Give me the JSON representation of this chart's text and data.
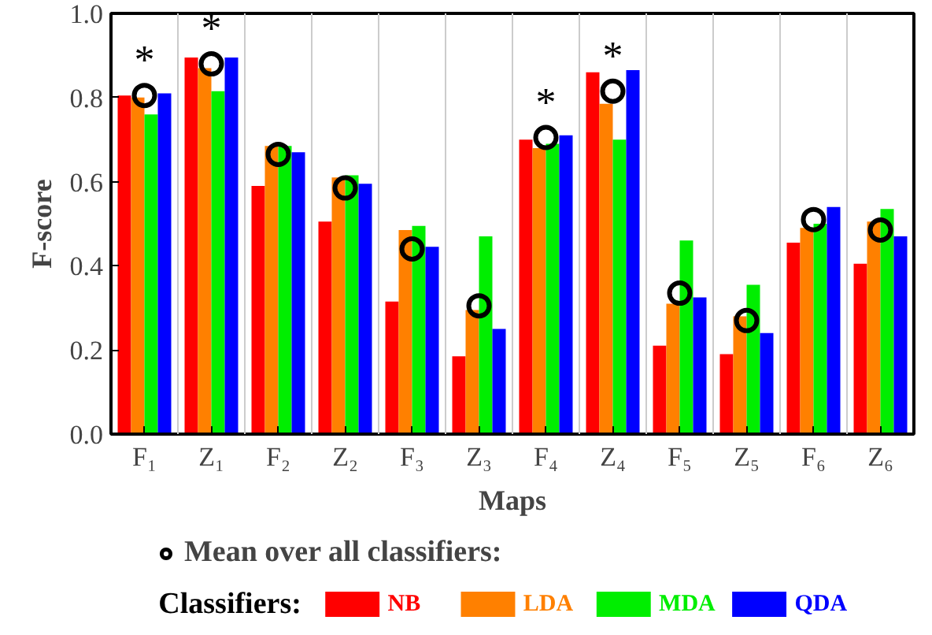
{
  "chart_data": {
    "type": "bar",
    "xlabel": "Maps",
    "ylabel": "F-score",
    "legend_title": "Classifiers:",
    "categories": [
      "F₁",
      "Z₁",
      "F₂",
      "Z₂",
      "F₃",
      "Z₃",
      "F₄",
      "Z₄",
      "F₅",
      "Z₅",
      "F₆",
      "Z₆"
    ],
    "series": [
      {
        "name": "NB",
        "color": "#ff0000",
        "values": [
          0.805,
          0.895,
          0.59,
          0.505,
          0.315,
          0.185,
          0.7,
          0.86,
          0.21,
          0.19,
          0.455,
          0.405
        ]
      },
      {
        "name": "LDA",
        "color": "#ff8000",
        "values": [
          0.8,
          0.87,
          0.685,
          0.61,
          0.485,
          0.295,
          0.68,
          0.785,
          0.31,
          0.28,
          0.49,
          0.505
        ]
      },
      {
        "name": "MDA",
        "color": "#00ee00",
        "values": [
          0.76,
          0.815,
          0.685,
          0.615,
          0.495,
          0.47,
          0.69,
          0.7,
          0.46,
          0.355,
          0.5,
          0.535
        ]
      },
      {
        "name": "QDA",
        "color": "#0000ff",
        "values": [
          0.81,
          0.895,
          0.67,
          0.595,
          0.445,
          0.25,
          0.71,
          0.865,
          0.325,
          0.24,
          0.54,
          0.47
        ]
      },
      {
        "name": "Mean over all classifiers:",
        "type": "scatter",
        "marker": "circle",
        "color": "#000000",
        "values": [
          0.805,
          0.88,
          0.665,
          0.585,
          0.44,
          0.305,
          0.705,
          0.815,
          0.335,
          0.27,
          0.51,
          0.485
        ]
      }
    ],
    "ylim": [
      0,
      1.0
    ],
    "yticks": [
      {
        "value": 0,
        "label": "0.0"
      },
      {
        "value": 0.2,
        "label": "0.2"
      },
      {
        "value": 0.4,
        "label": "0.4"
      },
      {
        "value": 0.6,
        "label": "0.6"
      },
      {
        "value": 0.8,
        "label": "0.8"
      },
      {
        "value": 1.0,
        "label": "1.0"
      }
    ],
    "grid": "x",
    "legend": "bottom",
    "annotations": [
      {
        "text": "*",
        "x": "F₁",
        "y": 0.805
      },
      {
        "text": "*",
        "x": "Z₁",
        "y": 0.88
      },
      {
        "text": "*",
        "x": "F₄",
        "y": 0.705
      },
      {
        "text": "*",
        "x": "Z₄",
        "y": 0.815
      }
    ]
  }
}
